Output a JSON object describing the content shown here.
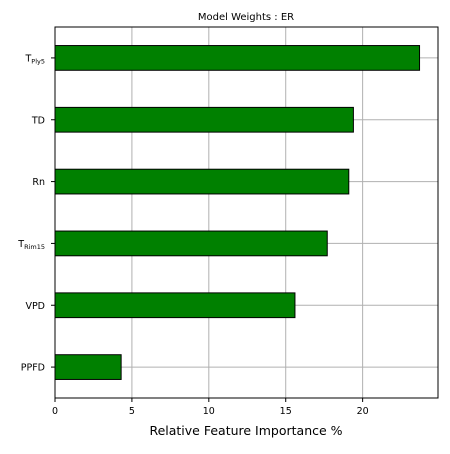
{
  "chart_data": {
    "type": "bar",
    "orientation": "horizontal",
    "title": "Model Weights : ER",
    "xlabel": "Relative Feature Importance %",
    "ylabel": "",
    "categories": [
      {
        "label": "T",
        "subscript": "Ply5"
      },
      {
        "label": "TD",
        "subscript": ""
      },
      {
        "label": "Rn",
        "subscript": ""
      },
      {
        "label": "T",
        "subscript": "Rim15"
      },
      {
        "label": "VPD",
        "subscript": ""
      },
      {
        "label": "PPFD",
        "subscript": ""
      }
    ],
    "values": [
      23.7,
      19.4,
      19.1,
      17.7,
      15.6,
      4.3
    ],
    "xlim": [
      0,
      24.9
    ],
    "xticks": [
      0,
      5,
      10,
      15,
      20
    ],
    "grid": true,
    "bar_color": "#008000",
    "bar_edge_color": "#000000",
    "grid_color": "#b0b0b0"
  }
}
